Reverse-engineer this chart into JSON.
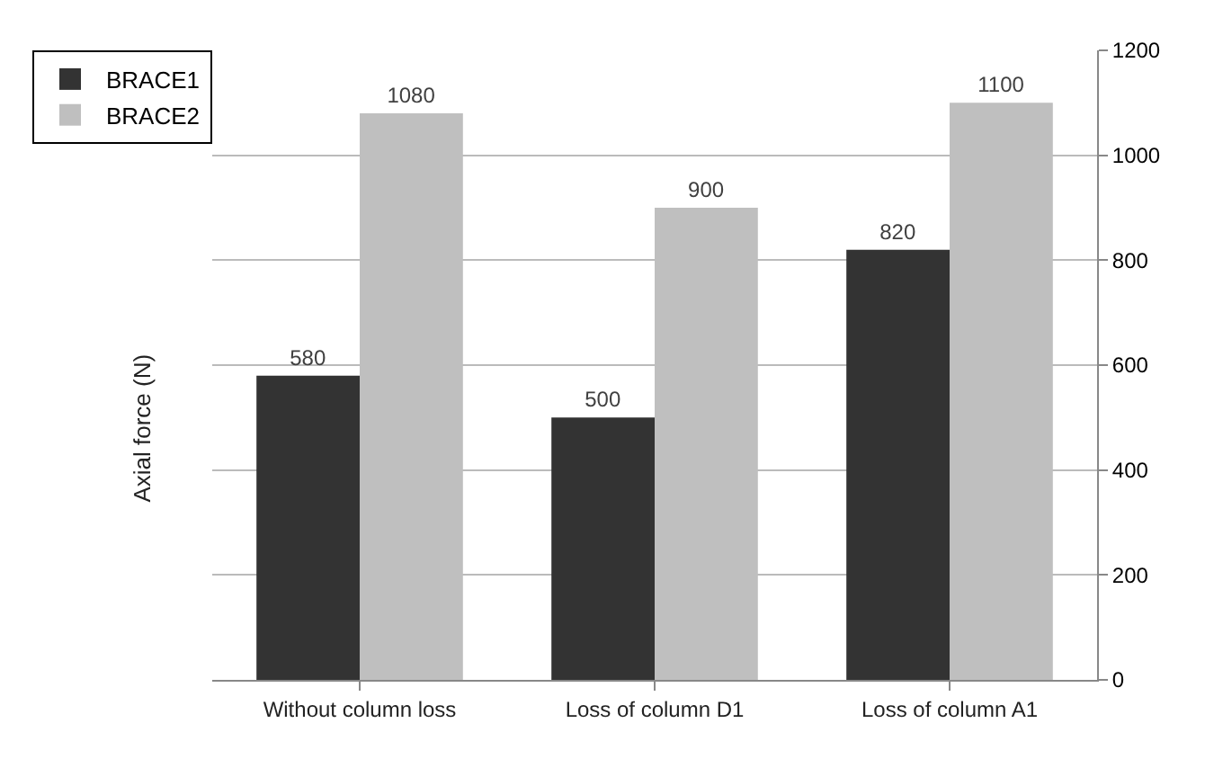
{
  "chart_data": {
    "type": "bar",
    "ylabel": "Axial force (N)",
    "categories": [
      "Without column loss",
      "Loss of column D1",
      "Loss of column A1"
    ],
    "series": [
      {
        "name": "BRACE1",
        "color": "#333333",
        "values": [
          580,
          500,
          820
        ]
      },
      {
        "name": "BRACE2",
        "color": "#bfbfbf",
        "values": [
          1080,
          900,
          1100
        ]
      }
    ],
    "ylim": [
      0,
      1200
    ],
    "yticks": [
      0,
      200,
      400,
      600,
      800,
      1000,
      1200
    ],
    "grid": "y",
    "legend": "top left",
    "data_labels": true
  }
}
